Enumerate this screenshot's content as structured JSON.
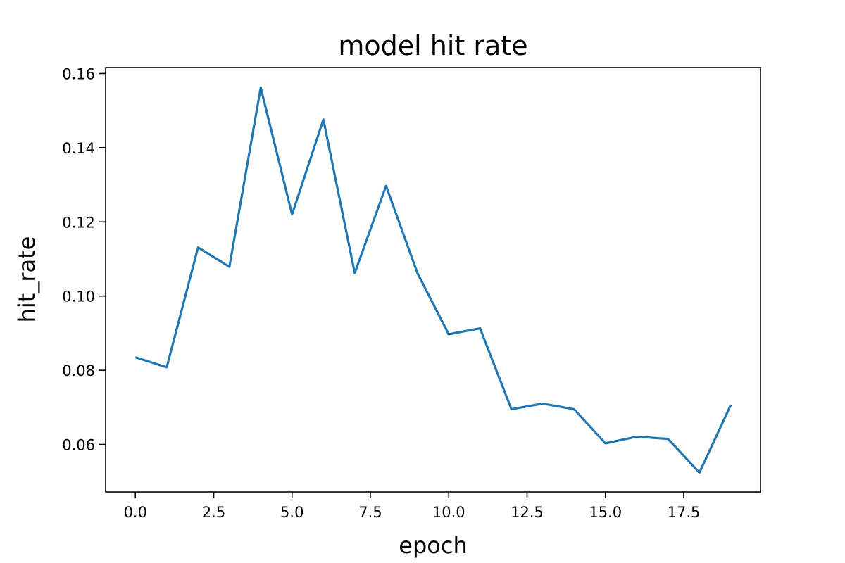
{
  "chart_data": {
    "type": "line",
    "title": "model hit rate",
    "xlabel": "epoch",
    "ylabel": "hit_rate",
    "xlim": [
      -0.95,
      19.95
    ],
    "ylim": [
      0.0472,
      0.1616
    ],
    "x_ticks": [
      0.0,
      2.5,
      5.0,
      7.5,
      10.0,
      12.5,
      15.0,
      17.5
    ],
    "x_tick_labels": [
      "0.0",
      "2.5",
      "5.0",
      "7.5",
      "10.0",
      "12.5",
      "15.0",
      "17.5"
    ],
    "y_ticks": [
      0.06,
      0.08,
      0.1,
      0.12,
      0.14,
      0.16
    ],
    "y_tick_labels": [
      "0.06",
      "0.08",
      "0.10",
      "0.12",
      "0.14",
      "0.16"
    ],
    "grid": false,
    "series": [
      {
        "color": "#1f77b4",
        "x": [
          0,
          1,
          2,
          3,
          4,
          5,
          6,
          7,
          8,
          9,
          10,
          11,
          12,
          13,
          14,
          15,
          16,
          17,
          18,
          19
        ],
        "y": [
          0.0835,
          0.0808,
          0.1131,
          0.1079,
          0.1562,
          0.122,
          0.1476,
          0.1062,
          0.1297,
          0.1062,
          0.0897,
          0.0913,
          0.0695,
          0.071,
          0.0695,
          0.0603,
          0.0621,
          0.0615,
          0.0524,
          0.0706
        ]
      }
    ]
  }
}
